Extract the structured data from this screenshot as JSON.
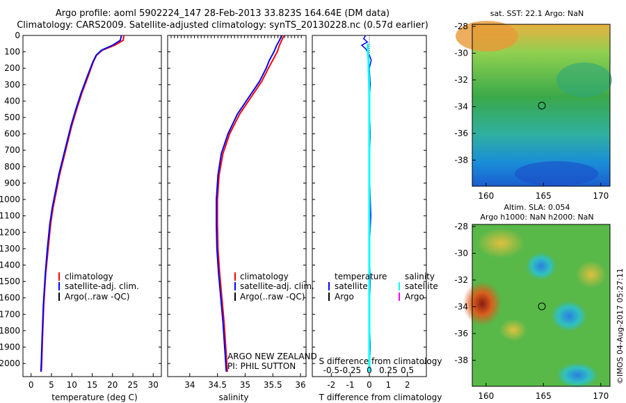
{
  "header": {
    "line1": "Argo profile: aoml 5902224_147 28-Feb-2013 33.823S 164.64E (DM data)",
    "line2": "Climatology: CARS2009. Satellite-adjusted climatology: synTS_20130228.nc (0.57d earlier)"
  },
  "colors": {
    "climatology": "#ff0000",
    "satellite": "#0000ff",
    "argo": "#000000",
    "sal_satellite": "#00ffff",
    "sal_argo": "#ff00ff"
  },
  "chart_data": [
    {
      "type": "line",
      "name": "temperature-profile",
      "xlabel": "temperature (deg C)",
      "ylabel": "",
      "xlim": [
        -2,
        32
      ],
      "ylim": [
        2080,
        0
      ],
      "xticks": [
        "0",
        "5",
        "10",
        "15",
        "20",
        "25",
        "30"
      ],
      "yticks": [
        "0",
        "100",
        "200",
        "300",
        "400",
        "500",
        "600",
        "700",
        "800",
        "900",
        "1000",
        "1100",
        "1200",
        "1300",
        "1400",
        "1500",
        "1600",
        "1700",
        "1800",
        "1900",
        "2000"
      ],
      "legend": [
        "climatology",
        "satellite-adj. clim.",
        "Argo(..raw -QC)"
      ],
      "series": [
        {
          "name": "climatology",
          "x": [
            22.8,
            22.6,
            20.5,
            17.5,
            16.1,
            15.3,
            14.0,
            12.5,
            11.2,
            10.0,
            9.0,
            8.0,
            7.0,
            6.2,
            5.4,
            4.8,
            4.2,
            3.6,
            3.1,
            2.8,
            2.6,
            2.5
          ],
          "y": [
            0,
            30,
            60,
            90,
            120,
            160,
            250,
            350,
            450,
            550,
            650,
            750,
            850,
            950,
            1050,
            1150,
            1300,
            1450,
            1650,
            1850,
            2000,
            2050
          ]
        },
        {
          "name": "satellite-adj. clim.",
          "x": [
            22.2,
            21.9,
            20.0,
            17.3,
            16.0,
            15.2,
            13.8,
            12.3,
            11.0,
            9.8,
            8.8,
            7.8,
            6.8,
            6.0,
            5.2,
            4.6,
            4.0,
            3.5,
            3.0,
            2.7,
            2.5,
            2.4
          ],
          "y": [
            0,
            30,
            60,
            90,
            120,
            160,
            250,
            350,
            450,
            550,
            650,
            750,
            850,
            950,
            1050,
            1150,
            1300,
            1450,
            1650,
            1850,
            2000,
            2050
          ]
        }
      ]
    },
    {
      "type": "line",
      "name": "salinity-profile",
      "xlabel": "salinity",
      "xlim": [
        33.6,
        36.1
      ],
      "ylim": [
        2080,
        0
      ],
      "xticks": [
        "34",
        "34.5",
        "35",
        "35.5",
        "36"
      ],
      "legend": [
        "climatology",
        "satellite-adj. clim.",
        "Argo(..raw -QC)"
      ],
      "annotation": [
        "ARGO NEW ZEALAND",
        "PI: PHIL SUTTON"
      ],
      "series": [
        {
          "name": "climatology",
          "x": [
            35.7,
            35.66,
            35.62,
            35.58,
            35.5,
            35.42,
            35.3,
            35.1,
            34.9,
            34.72,
            34.6,
            34.53,
            34.5,
            34.5,
            34.51,
            34.54,
            34.58,
            34.62,
            34.65,
            34.67,
            34.68
          ],
          "y": [
            0,
            30,
            60,
            100,
            150,
            200,
            280,
            380,
            480,
            600,
            720,
            850,
            1000,
            1150,
            1300,
            1450,
            1600,
            1750,
            1900,
            2000,
            2050
          ]
        },
        {
          "name": "satellite-adj. clim.",
          "x": [
            35.66,
            35.62,
            35.57,
            35.52,
            35.44,
            35.38,
            35.26,
            35.06,
            34.86,
            34.69,
            34.57,
            34.51,
            34.48,
            34.48,
            34.49,
            34.52,
            34.56,
            34.6,
            34.63,
            34.65,
            34.66
          ],
          "y": [
            0,
            30,
            60,
            100,
            150,
            200,
            280,
            380,
            480,
            600,
            720,
            850,
            1000,
            1150,
            1300,
            1450,
            1600,
            1750,
            1900,
            2000,
            2050
          ]
        }
      ]
    },
    {
      "type": "line",
      "name": "difference-profile",
      "xlabel": "T difference from climatology",
      "xlabel_top": "S difference from climatology",
      "xlim": [
        -3,
        3
      ],
      "ylim": [
        2080,
        0
      ],
      "xticks": [
        "-2",
        "-1",
        "0",
        "1",
        "2"
      ],
      "xticks_top": [
        "-0.5",
        "-0.25",
        "0",
        "0.25",
        "0.5"
      ],
      "legend_title_t": "temperature",
      "legend_title_s": "salinity",
      "legend_t": [
        "satellite",
        "Argo"
      ],
      "legend_s": [
        "satellite",
        "Argo"
      ],
      "series": [
        {
          "name": "T satellite",
          "x": [
            -0.2,
            -0.3,
            -0.1,
            -0.4,
            -0.2,
            -0.1,
            0.0,
            0.1,
            0.0,
            0.05,
            0.0,
            0.05,
            0.0,
            0.05,
            0.08,
            0.0,
            0.05,
            0.0,
            0.05,
            0.0
          ],
          "y": [
            0,
            20,
            40,
            60,
            80,
            100,
            120,
            150,
            200,
            300,
            400,
            600,
            800,
            1000,
            1100,
            1300,
            1500,
            1700,
            1900,
            2050
          ]
        },
        {
          "name": "S satellite",
          "x": [
            -0.02,
            -0.02,
            -0.01,
            -0.01,
            -0.005,
            0,
            0,
            0,
            0,
            0,
            0,
            0,
            0
          ],
          "y": [
            50,
            100,
            150,
            200,
            260,
            350,
            500,
            700,
            900,
            1200,
            1500,
            1800,
            2050
          ]
        }
      ]
    }
  ],
  "maps": {
    "sst": {
      "title": "sat. SST: 22.1  Argo: NaN",
      "xticks": [
        "160",
        "165",
        "170"
      ],
      "yticks": [
        "-28",
        "-30",
        "-32",
        "-34",
        "-36",
        "-38"
      ]
    },
    "sla": {
      "title1": "Altim. SLA: 0.054",
      "title2": "Argo h1000: NaN h2000: NaN",
      "xticks": [
        "160",
        "165",
        "170"
      ],
      "yticks": [
        "-28",
        "-30",
        "-32",
        "-34",
        "-36",
        "-38"
      ]
    }
  },
  "footer": {
    "credit": "©IMOS 04-Aug-2017 05:27:11"
  }
}
